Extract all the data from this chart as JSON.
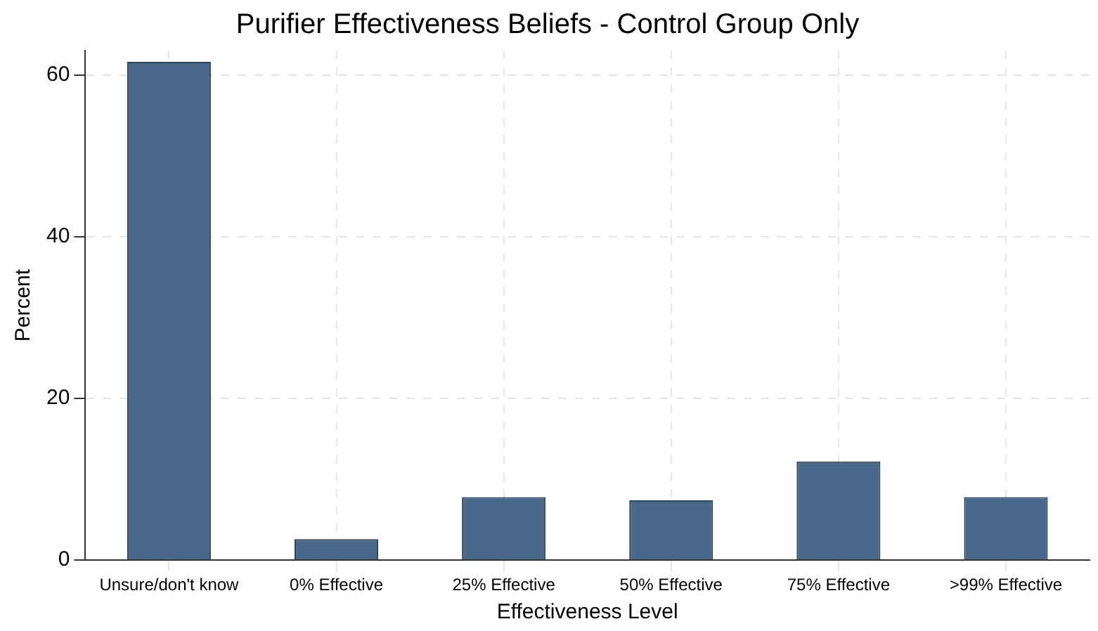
{
  "chart_data": {
    "type": "bar",
    "title": "Purifier Effectiveness Beliefs - Control Group Only",
    "xlabel": "Effectiveness Level",
    "ylabel": "Percent",
    "categories": [
      "Unsure/don't know",
      "0% Effective",
      "25% Effective",
      "50% Effective",
      "75% Effective",
      ">99% Effective"
    ],
    "values": [
      61.6,
      2.6,
      7.8,
      7.4,
      12.2,
      7.8
    ],
    "color": "#48698a",
    "ylim": [
      0,
      63
    ],
    "yticks": [
      0,
      20,
      40,
      60
    ],
    "grid": true,
    "legend": false
  }
}
